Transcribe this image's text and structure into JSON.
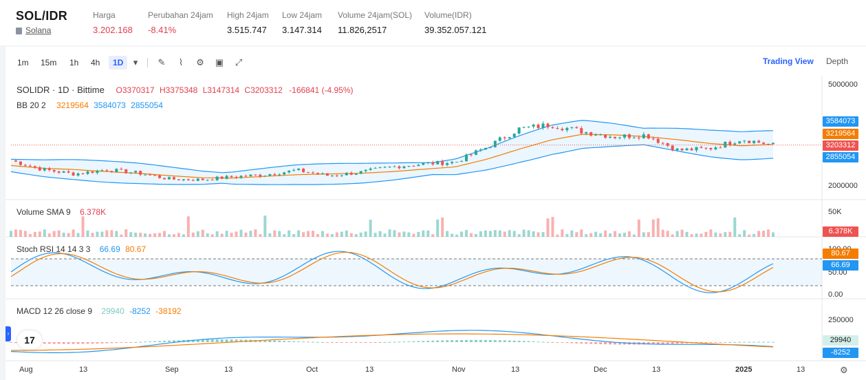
{
  "header": {
    "pair": "SOL/IDR",
    "coin": "Solana",
    "stats": [
      {
        "label": "Harga",
        "value": "3.202.168",
        "negative": true
      },
      {
        "label": "Perubahan 24jam",
        "value": "-8.41%",
        "negative": true
      },
      {
        "label": "High 24jam",
        "value": "3.515.747",
        "negative": false
      },
      {
        "label": "Low 24jam",
        "value": "3.147.314",
        "negative": false
      },
      {
        "label": "Volume 24jam(SOL)",
        "value": "11.826,2517",
        "negative": false
      },
      {
        "label": "Volume(IDR)",
        "value": "39.352.057.121",
        "negative": false
      }
    ]
  },
  "toolbar": {
    "intervals": [
      "1m",
      "15m",
      "1h",
      "4h",
      "1D"
    ],
    "active_interval": "1D",
    "icons": [
      "dropdown-icon",
      "draw-icon",
      "indicator-icon",
      "settings-icon",
      "save-icon",
      "fullscreen-icon"
    ],
    "views": {
      "trading_view": "Trading View",
      "depth": "Depth"
    }
  },
  "legend": {
    "symbol": "SOLIDR · 1D · Bittime",
    "ohlc": {
      "O": "O3370317",
      "H": "H3375348",
      "L": "L3147314",
      "C": "C3203312",
      "chg": "-166841 (-4.95%)"
    },
    "bb": {
      "name": "BB 20 2",
      "basis": "3219564",
      "upper": "3584073",
      "lower": "2855054"
    },
    "volume": {
      "name": "Volume SMA 9",
      "value": "6.378K"
    },
    "stoch": {
      "name": "Stoch RSI 14 14 3 3",
      "k": "66.69",
      "d": "80.67"
    },
    "macd": {
      "name": "MACD 12 26 close 9",
      "hist": "29940",
      "macd": "-8252",
      "signal": "-38192"
    }
  },
  "price_axis": {
    "top": "5000000",
    "bottom": "2000000",
    "last": "3203312",
    "upper": "3584073",
    "basis": "3219564",
    "lower": "2855054"
  },
  "volume_axis": {
    "top": "50K",
    "last": "6.378K"
  },
  "stoch_axis": {
    "top": "100.00",
    "mid": "50.00",
    "bottom": "0.00",
    "k": "66.69",
    "d": "80.67"
  },
  "macd_axis": {
    "top": "250000",
    "hist": "29940",
    "macd": "-8252"
  },
  "x_axis": [
    "Aug",
    "13",
    "Sep",
    "13",
    "Oct",
    "13",
    "Nov",
    "13",
    "Dec",
    "13",
    "2025",
    "13"
  ],
  "colors": {
    "up": "#26a69a",
    "down": "#ef5350",
    "bb_basis": "#f57c00",
    "bb_band": "#2196f3",
    "accent": "#2962ff"
  },
  "chart_data": {
    "type": "line",
    "title": "SOLIDR · 1D · Bittime",
    "x": [
      "2024-07-27",
      "2024-08-03",
      "2024-08-10",
      "2024-08-17",
      "2024-08-24",
      "2024-08-31",
      "2024-09-07",
      "2024-09-14",
      "2024-09-21",
      "2024-09-28",
      "2024-10-05",
      "2024-10-12",
      "2024-10-19",
      "2024-10-26",
      "2024-11-02",
      "2024-11-09",
      "2024-11-16",
      "2024-11-23",
      "2024-11-30",
      "2024-12-07",
      "2024-12-14",
      "2024-12-21",
      "2024-12-28",
      "2025-01-04",
      "2025-01-08"
    ],
    "series": [
      {
        "name": "Close",
        "values": [
          2750000,
          2480000,
          2350000,
          2480000,
          2380000,
          2200000,
          2180000,
          2270000,
          2330000,
          2460000,
          2300000,
          2400000,
          2560000,
          2650000,
          2700000,
          3150000,
          3680000,
          3800000,
          3600000,
          3450000,
          3500000,
          3050000,
          3100000,
          3380000,
          3203312
        ]
      },
      {
        "name": "BB 20 2",
        "values": [
          2600000,
          2520000,
          2480000,
          2420000,
          2370000,
          2300000,
          2240000,
          2230000,
          2280000,
          2330000,
          2350000,
          2370000,
          2420000,
          2490000,
          2560000,
          2790000,
          3080000,
          3350000,
          3520000,
          3500000,
          3450000,
          3360000,
          3250000,
          3180000,
          3219564
        ]
      }
    ],
    "ylim": [
      2000000,
      5000000
    ]
  }
}
